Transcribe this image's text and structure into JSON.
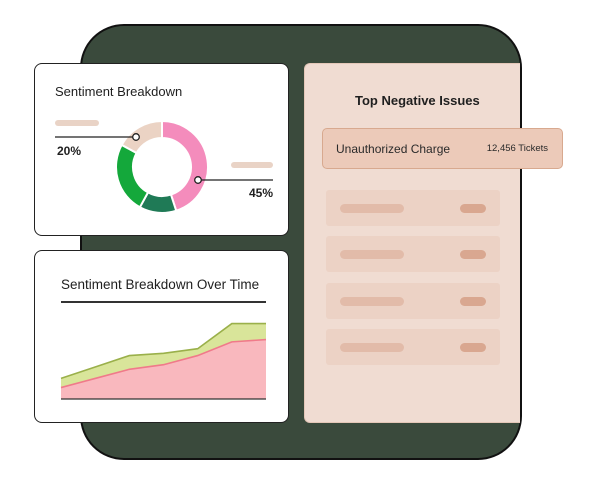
{
  "sentiment_card": {
    "title": "Sentiment Breakdown",
    "left_label": "20%",
    "right_label": "45%",
    "donut": {
      "segments": [
        {
          "name": "pink",
          "fraction": 0.45,
          "color": "#f48cbc"
        },
        {
          "name": "dark-green",
          "fraction": 0.13,
          "color": "#1f7a56"
        },
        {
          "name": "green",
          "fraction": 0.25,
          "color": "#14a83b"
        },
        {
          "name": "beige",
          "fraction": 0.17,
          "color": "#ebd3c4"
        }
      ]
    }
  },
  "time_card": {
    "title": "Sentiment Breakdown Over Time",
    "chart_data": {
      "type": "area",
      "x": [
        0,
        1,
        2,
        3,
        4,
        5,
        6
      ],
      "series": [
        {
          "values": [
            10,
            18,
            26,
            30,
            38,
            50,
            52
          ],
          "color": "#f9b8be"
        },
        {
          "values": [
            18,
            28,
            38,
            40,
            44,
            66,
            66
          ],
          "color": "#d9e59a"
        }
      ],
      "ylim": [
        0,
        70
      ]
    }
  },
  "issues_card": {
    "title": "Top Negative Issues",
    "highlight": {
      "name": "Unauthorized Charge",
      "count": "12,456 Tickets"
    },
    "placeholder_rows": 4
  }
}
